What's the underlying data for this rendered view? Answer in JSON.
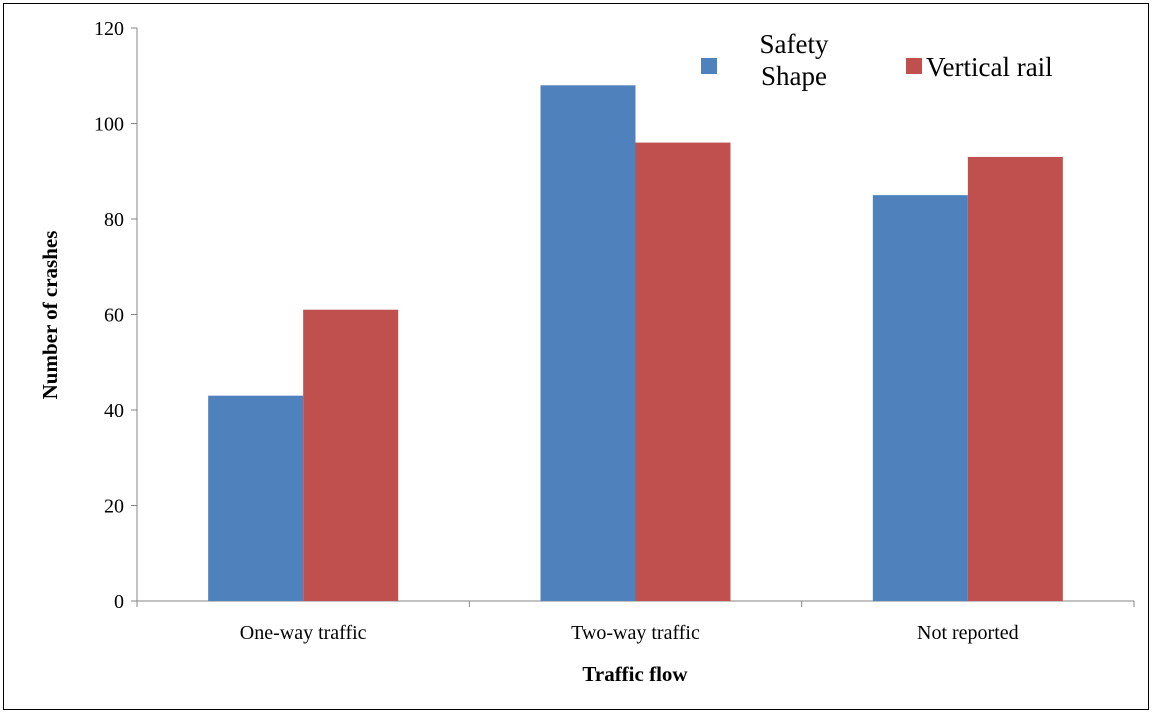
{
  "chart_data": {
    "type": "bar",
    "title": "",
    "xlabel": "Traffic flow",
    "ylabel": "Number of crashes",
    "ylim": [
      0,
      120
    ],
    "yticks": [
      0,
      20,
      40,
      60,
      80,
      100,
      120
    ],
    "grid": false,
    "legend_position": "top-right",
    "categories": [
      "One-way traffic",
      "Two-way traffic",
      "Not reported"
    ],
    "series": [
      {
        "name": "Safety Shape",
        "color": "#4F81BD",
        "values": [
          43,
          108,
          85
        ]
      },
      {
        "name": "Vertical rail",
        "color": "#C0504D",
        "values": [
          61,
          96,
          93
        ]
      }
    ]
  }
}
